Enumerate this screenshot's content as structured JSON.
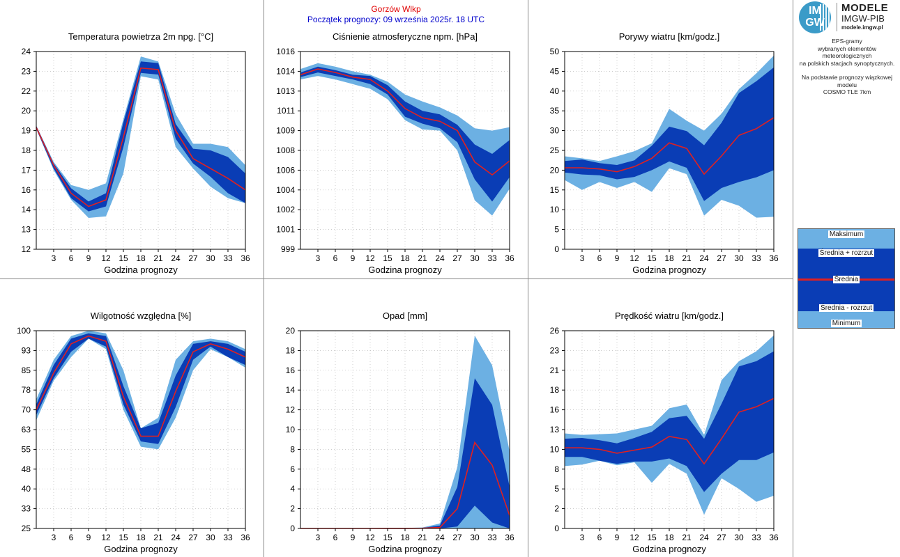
{
  "header": {
    "station": "Gorzów Wlkp",
    "start": "Początek prognozy: 09 września 2025r. 18 UTC"
  },
  "logo": {
    "mark_line1": "IM",
    "mark_line2": "GW",
    "title": "MODELE",
    "org": "IMGW-PIB",
    "url": "modele.imgw.pl"
  },
  "info": {
    "line1": "EPS-gramy",
    "line2": "wybranych elementów meteorologicznych",
    "line3": "na polskich stacjach  synoptycznych.",
    "line4": "Na podstawie prognozy wiązkowej modelu",
    "line5": "COSMO TLE 7km"
  },
  "legend": {
    "max": "Maksimum",
    "mean_plus": "Średnia + rozrzut",
    "mean": "Średnia",
    "mean_minus": "Średnia - rozrzut",
    "min": "Minimum"
  },
  "colors": {
    "outer_band": "#6cb0e3",
    "inner_band": "#0a3db5",
    "mean_line": "#e02020",
    "station": "#e00000",
    "start": "#0000cc"
  },
  "chart_data": [
    {
      "type": "area",
      "title": "Temperatura powietrza 2m npg. [°C]",
      "xlabel": "Godzina prognozy",
      "xlim": [
        0,
        36
      ],
      "ylim": [
        12,
        24
      ],
      "x_ticks": [
        "3",
        "6",
        "9",
        "12",
        "15",
        "18",
        "21",
        "24",
        "27",
        "30",
        "33",
        "36"
      ],
      "y_ticks": [
        "12",
        "13",
        "14",
        "16",
        "17",
        "18",
        "19",
        "20",
        "22",
        "23",
        "24"
      ],
      "grid": true,
      "x": [
        0,
        3,
        6,
        9,
        12,
        15,
        18,
        21,
        24,
        27,
        30,
        33,
        36
      ],
      "series": [
        {
          "name": "Maksimum",
          "values": [
            19.5,
            17.3,
            15.9,
            15.6,
            16.0,
            19.9,
            23.7,
            23.4,
            20.2,
            18.4,
            18.4,
            18.2,
            17.1
          ]
        },
        {
          "name": "Średnia + rozrzut",
          "values": [
            19.5,
            17.2,
            15.7,
            14.9,
            15.4,
            19.7,
            23.4,
            23.3,
            19.6,
            18.1,
            18.0,
            17.6,
            16.6
          ]
        },
        {
          "name": "Średnia",
          "values": [
            19.4,
            17.1,
            15.4,
            14.6,
            15.0,
            18.8,
            23.0,
            22.9,
            19.2,
            17.5,
            16.9,
            16.3,
            15.6
          ]
        },
        {
          "name": "Średnia - rozrzut",
          "values": [
            19.3,
            16.9,
            15.1,
            14.3,
            14.6,
            18.2,
            22.7,
            22.6,
            18.7,
            17.2,
            16.4,
            15.4,
            14.8
          ]
        },
        {
          "name": "Minimum",
          "values": [
            19.3,
            16.8,
            15.0,
            13.9,
            14.0,
            16.6,
            22.5,
            22.3,
            18.2,
            16.9,
            15.8,
            15.1,
            14.8
          ]
        }
      ]
    },
    {
      "type": "area",
      "title": "Ciśnienie atmosferyczne npm. [hPa]",
      "xlabel": "Godzina prognozy",
      "xlim": [
        0,
        36
      ],
      "ylim": [
        999,
        1016
      ],
      "x_ticks": [
        "3",
        "6",
        "9",
        "12",
        "15",
        "18",
        "21",
        "24",
        "27",
        "30",
        "33",
        "36"
      ],
      "y_ticks": [
        "999",
        "1001",
        "1002",
        "1004",
        "1006",
        "1008",
        "1009",
        "1011",
        "1013",
        "1014",
        "1016"
      ],
      "grid": true,
      "x": [
        0,
        3,
        6,
        9,
        12,
        15,
        18,
        21,
        24,
        27,
        30,
        33,
        36
      ],
      "series": [
        {
          "name": "Maksimum",
          "values": [
            1014.5,
            1015.0,
            1014.7,
            1014.3,
            1014.0,
            1013.4,
            1012.3,
            1011.7,
            1011.2,
            1010.5,
            1009.4,
            1009.2,
            1009.5
          ]
        },
        {
          "name": "Średnia + rozrzut",
          "values": [
            1014.2,
            1014.7,
            1014.4,
            1014.0,
            1013.9,
            1013.1,
            1011.7,
            1010.9,
            1010.6,
            1009.7,
            1008.0,
            1007.2,
            1008.4
          ]
        },
        {
          "name": "Średnia",
          "values": [
            1014.0,
            1014.5,
            1014.2,
            1013.8,
            1013.6,
            1012.6,
            1011.1,
            1010.3,
            1010.0,
            1009.2,
            1006.5,
            1005.4,
            1006.6
          ]
        },
        {
          "name": "Średnia - rozrzut",
          "values": [
            1013.8,
            1014.2,
            1013.9,
            1013.6,
            1013.2,
            1012.3,
            1010.4,
            1009.8,
            1009.4,
            1008.2,
            1005.0,
            1003.1,
            1005.2
          ]
        },
        {
          "name": "Minimum",
          "values": [
            1013.6,
            1013.9,
            1013.6,
            1013.2,
            1012.8,
            1011.9,
            1010.1,
            1009.3,
            1009.2,
            1007.5,
            1003.2,
            1001.9,
            1004.2
          ]
        }
      ]
    },
    {
      "type": "area",
      "title": "Porywy wiatru [km/godz.]",
      "xlabel": "Godzina prognozy",
      "xlim": [
        0,
        36
      ],
      "ylim": [
        0,
        50
      ],
      "x_ticks": [
        "3",
        "6",
        "9",
        "12",
        "15",
        "18",
        "21",
        "24",
        "27",
        "30",
        "33",
        "36"
      ],
      "y_ticks": [
        "0",
        "5",
        "10",
        "15",
        "20",
        "25",
        "30",
        "35",
        "40",
        "45",
        "50"
      ],
      "grid": true,
      "x": [
        0,
        3,
        6,
        9,
        12,
        15,
        18,
        21,
        24,
        27,
        30,
        33,
        36
      ],
      "series": [
        {
          "name": "Maksimum",
          "values": [
            23.5,
            23.0,
            22.3,
            23.5,
            24.8,
            26.8,
            35.5,
            32.5,
            30.0,
            34.3,
            40.5,
            44.5,
            49.0
          ]
        },
        {
          "name": "Średnia + rozrzut",
          "values": [
            22.3,
            22.7,
            21.8,
            21.3,
            22.5,
            26.2,
            31.0,
            29.9,
            26.3,
            32.0,
            39.5,
            42.5,
            46.0
          ]
        },
        {
          "name": "Średnia",
          "values": [
            20.6,
            20.6,
            20.3,
            19.6,
            20.9,
            23.0,
            26.9,
            25.5,
            19.0,
            23.6,
            28.8,
            30.5,
            33.3
          ]
        },
        {
          "name": "Średnia - rozrzut",
          "values": [
            19.4,
            18.9,
            18.7,
            17.7,
            18.3,
            20.0,
            22.2,
            20.6,
            12.2,
            15.5,
            17.0,
            18.2,
            20.0
          ]
        },
        {
          "name": "Minimum",
          "values": [
            17.5,
            15.0,
            17.0,
            15.5,
            17.0,
            14.5,
            20.5,
            19.0,
            8.5,
            12.5,
            11.0,
            8.0,
            8.2
          ]
        }
      ]
    },
    {
      "type": "area",
      "title": "Wilgotność względna [%]",
      "xlabel": "Godzina prognozy",
      "xlim": [
        0,
        36
      ],
      "ylim": [
        25,
        100
      ],
      "x_ticks": [
        "3",
        "6",
        "9",
        "12",
        "15",
        "18",
        "21",
        "24",
        "27",
        "30",
        "33",
        "36"
      ],
      "y_ticks": [
        "25",
        "33",
        "40",
        "48",
        "55",
        "63",
        "70",
        "78",
        "85",
        "93",
        "100"
      ],
      "grid": true,
      "x": [
        0,
        3,
        6,
        9,
        12,
        15,
        18,
        21,
        24,
        27,
        30,
        33,
        36
      ],
      "series": [
        {
          "name": "Maksimum",
          "values": [
            74,
            89,
            98,
            100,
            99,
            85,
            63,
            67,
            89,
            96,
            97,
            96,
            93
          ]
        },
        {
          "name": "Średnia + rozrzut",
          "values": [
            72,
            87,
            97,
            99,
            98,
            79,
            63,
            65,
            83,
            95,
            96,
            95,
            92
          ]
        },
        {
          "name": "Średnia",
          "values": [
            70,
            84,
            95,
            98,
            96,
            75,
            60,
            60,
            77,
            92,
            95,
            93,
            90
          ]
        },
        {
          "name": "Średnia - rozrzut",
          "values": [
            68,
            82,
            92,
            97,
            94,
            72,
            58,
            57,
            71,
            89,
            94,
            90,
            87
          ]
        },
        {
          "name": "Minimum",
          "values": [
            66,
            81,
            90,
            97,
            93,
            70,
            56,
            55,
            67,
            85,
            93,
            90,
            86
          ]
        }
      ]
    },
    {
      "type": "area",
      "title": "Opad [mm]",
      "xlabel": "Godzina prognozy",
      "xlim": [
        0,
        36
      ],
      "ylim": [
        0,
        20
      ],
      "x_ticks": [
        "3",
        "6",
        "9",
        "12",
        "15",
        "18",
        "21",
        "24",
        "27",
        "30",
        "33",
        "36"
      ],
      "y_ticks": [
        "0",
        "2",
        "4",
        "6",
        "8",
        "10",
        "12",
        "14",
        "16",
        "18",
        "20"
      ],
      "grid": true,
      "x": [
        0,
        3,
        6,
        9,
        12,
        15,
        18,
        21,
        24,
        27,
        30,
        33,
        36
      ],
      "series": [
        {
          "name": "Maksimum",
          "values": [
            0,
            0,
            0,
            0,
            0,
            0.05,
            0.05,
            0.1,
            0.5,
            6.2,
            19.5,
            16.5,
            7.8
          ]
        },
        {
          "name": "Średnia + rozrzut",
          "values": [
            0,
            0,
            0,
            0,
            0,
            0.02,
            0.02,
            0.05,
            0.3,
            4.2,
            15.2,
            12.5,
            4.2
          ]
        },
        {
          "name": "Średnia",
          "values": [
            0,
            0,
            0,
            0,
            0,
            0.01,
            0.01,
            0.02,
            0.1,
            2.0,
            8.7,
            6.4,
            1.3
          ]
        },
        {
          "name": "Średnia - rozrzut",
          "values": [
            0,
            0,
            0,
            0,
            0,
            0,
            0,
            0,
            0,
            0.2,
            2.3,
            0.6,
            0
          ]
        },
        {
          "name": "Minimum",
          "values": [
            0,
            0,
            0,
            0,
            0,
            0,
            0,
            0,
            0,
            0,
            0,
            0,
            0
          ]
        }
      ]
    },
    {
      "type": "area",
      "title": "Prędkość wiatru [km/godz.]",
      "xlabel": "Godzina prognozy",
      "xlim": [
        0,
        36
      ],
      "ylim": [
        0,
        26
      ],
      "x_ticks": [
        "3",
        "6",
        "9",
        "12",
        "15",
        "18",
        "21",
        "24",
        "27",
        "30",
        "33",
        "36"
      ],
      "y_ticks": [
        "0",
        "2",
        "5",
        "8",
        "10",
        "13",
        "16",
        "18",
        "21",
        "23",
        "26"
      ],
      "grid": true,
      "x": [
        0,
        3,
        6,
        9,
        12,
        15,
        18,
        21,
        24,
        27,
        30,
        33,
        36
      ],
      "series": [
        {
          "name": "Maksimum",
          "values": [
            12.5,
            12.3,
            12.4,
            12.5,
            13.0,
            13.5,
            15.8,
            16.3,
            12.3,
            19.5,
            22.0,
            23.3,
            25.4
          ]
        },
        {
          "name": "Średnia + rozrzut",
          "values": [
            11.8,
            11.9,
            11.6,
            11.2,
            11.9,
            12.7,
            14.5,
            14.8,
            11.8,
            16.4,
            21.3,
            22.0,
            23.3
          ]
        },
        {
          "name": "Średnia",
          "values": [
            10.6,
            10.6,
            10.4,
            9.9,
            10.3,
            10.7,
            12.1,
            11.7,
            8.5,
            11.8,
            15.3,
            16.0,
            17.1
          ]
        },
        {
          "name": "Średnia - rozrzut",
          "values": [
            9.4,
            9.4,
            8.9,
            8.5,
            8.8,
            8.8,
            9.2,
            8.2,
            4.8,
            7.2,
            9.0,
            9.0,
            10.0
          ]
        },
        {
          "name": "Minimum",
          "values": [
            8.2,
            8.4,
            8.9,
            8.3,
            8.7,
            6.0,
            8.5,
            7.2,
            1.8,
            6.6,
            5.2,
            3.5,
            4.3
          ]
        }
      ]
    }
  ]
}
